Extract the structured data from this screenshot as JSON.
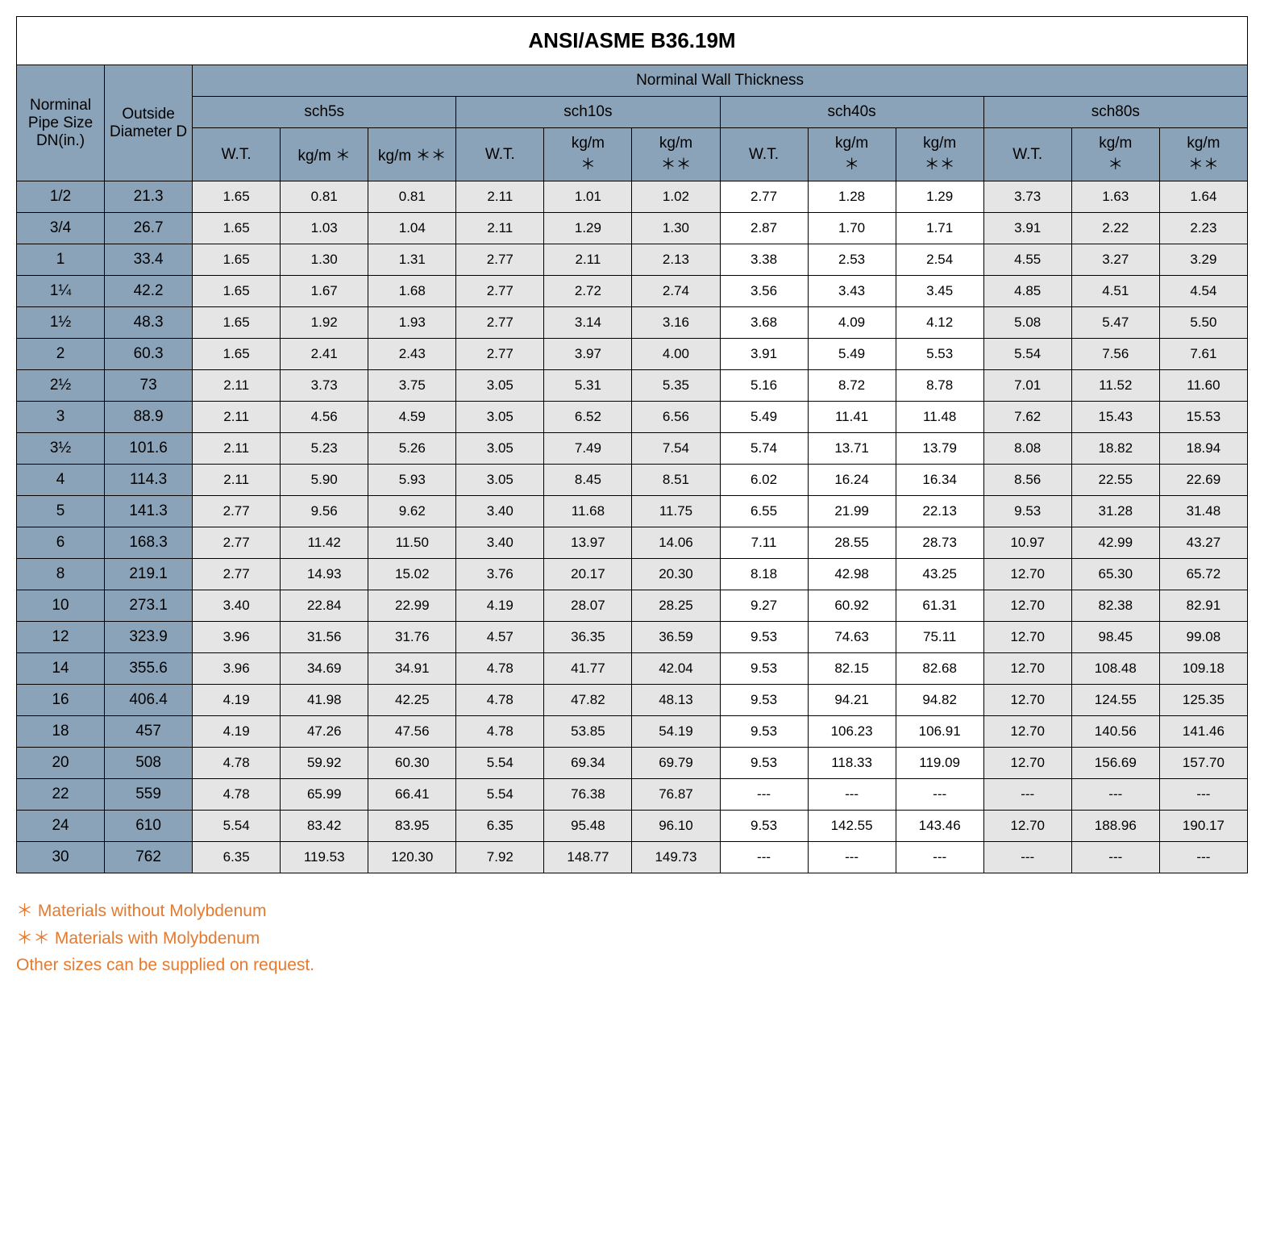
{
  "title": "ANSI/ASME B36.19M",
  "headers": {
    "nominal_pipe": "Norminal Pipe Size DN(in.)",
    "outside_diameter": "Outside Diameter D",
    "nominal_wall": "Norminal Wall Thickness",
    "schedules": [
      "sch5s",
      "sch10s",
      "sch40s",
      "sch80s"
    ],
    "sub": {
      "wt": "W.T.",
      "kgm1": "kg/m ＊",
      "kgm2": "kg/m ＊＊",
      "kgm1_stack": "kg/m\n＊",
      "kgm2_stack": "kg/m\n＊＊"
    }
  },
  "rows": [
    {
      "dn": "1/2",
      "od": "21.3",
      "s5": [
        "1.65",
        "0.81",
        "0.81"
      ],
      "s10": [
        "2.11",
        "1.01",
        "1.02"
      ],
      "s40": [
        "2.77",
        "1.28",
        "1.29"
      ],
      "s80": [
        "3.73",
        "1.63",
        "1.64"
      ]
    },
    {
      "dn": "3/4",
      "od": "26.7",
      "s5": [
        "1.65",
        "1.03",
        "1.04"
      ],
      "s10": [
        "2.11",
        "1.29",
        "1.30"
      ],
      "s40": [
        "2.87",
        "1.70",
        "1.71"
      ],
      "s80": [
        "3.91",
        "2.22",
        "2.23"
      ]
    },
    {
      "dn": "1",
      "od": "33.4",
      "s5": [
        "1.65",
        "1.30",
        "1.31"
      ],
      "s10": [
        "2.77",
        "2.11",
        "2.13"
      ],
      "s40": [
        "3.38",
        "2.53",
        "2.54"
      ],
      "s80": [
        "4.55",
        "3.27",
        "3.29"
      ]
    },
    {
      "dn": "1¼",
      "od": "42.2",
      "s5": [
        "1.65",
        "1.67",
        "1.68"
      ],
      "s10": [
        "2.77",
        "2.72",
        "2.74"
      ],
      "s40": [
        "3.56",
        "3.43",
        "3.45"
      ],
      "s80": [
        "4.85",
        "4.51",
        "4.54"
      ]
    },
    {
      "dn": "1½",
      "od": "48.3",
      "s5": [
        "1.65",
        "1.92",
        "1.93"
      ],
      "s10": [
        "2.77",
        "3.14",
        "3.16"
      ],
      "s40": [
        "3.68",
        "4.09",
        "4.12"
      ],
      "s80": [
        "5.08",
        "5.47",
        "5.50"
      ]
    },
    {
      "dn": "2",
      "od": "60.3",
      "s5": [
        "1.65",
        "2.41",
        "2.43"
      ],
      "s10": [
        "2.77",
        "3.97",
        "4.00"
      ],
      "s40": [
        "3.91",
        "5.49",
        "5.53"
      ],
      "s80": [
        "5.54",
        "7.56",
        "7.61"
      ]
    },
    {
      "dn": "2½",
      "od": "73",
      "s5": [
        "2.11",
        "3.73",
        "3.75"
      ],
      "s10": [
        "3.05",
        "5.31",
        "5.35"
      ],
      "s40": [
        "5.16",
        "8.72",
        "8.78"
      ],
      "s80": [
        "7.01",
        "11.52",
        "11.60"
      ]
    },
    {
      "dn": "3",
      "od": "88.9",
      "s5": [
        "2.11",
        "4.56",
        "4.59"
      ],
      "s10": [
        "3.05",
        "6.52",
        "6.56"
      ],
      "s40": [
        "5.49",
        "11.41",
        "11.48"
      ],
      "s80": [
        "7.62",
        "15.43",
        "15.53"
      ]
    },
    {
      "dn": "3½",
      "od": "101.6",
      "s5": [
        "2.11",
        "5.23",
        "5.26"
      ],
      "s10": [
        "3.05",
        "7.49",
        "7.54"
      ],
      "s40": [
        "5.74",
        "13.71",
        "13.79"
      ],
      "s80": [
        "8.08",
        "18.82",
        "18.94"
      ]
    },
    {
      "dn": "4",
      "od": "114.3",
      "s5": [
        "2.11",
        "5.90",
        "5.93"
      ],
      "s10": [
        "3.05",
        "8.45",
        "8.51"
      ],
      "s40": [
        "6.02",
        "16.24",
        "16.34"
      ],
      "s80": [
        "8.56",
        "22.55",
        "22.69"
      ]
    },
    {
      "dn": "5",
      "od": "141.3",
      "s5": [
        "2.77",
        "9.56",
        "9.62"
      ],
      "s10": [
        "3.40",
        "11.68",
        "11.75"
      ],
      "s40": [
        "6.55",
        "21.99",
        "22.13"
      ],
      "s80": [
        "9.53",
        "31.28",
        "31.48"
      ]
    },
    {
      "dn": "6",
      "od": "168.3",
      "s5": [
        "2.77",
        "11.42",
        "11.50"
      ],
      "s10": [
        "3.40",
        "13.97",
        "14.06"
      ],
      "s40": [
        "7.11",
        "28.55",
        "28.73"
      ],
      "s80": [
        "10.97",
        "42.99",
        "43.27"
      ]
    },
    {
      "dn": "8",
      "od": "219.1",
      "s5": [
        "2.77",
        "14.93",
        "15.02"
      ],
      "s10": [
        "3.76",
        "20.17",
        "20.30"
      ],
      "s40": [
        "8.18",
        "42.98",
        "43.25"
      ],
      "s80": [
        "12.70",
        "65.30",
        "65.72"
      ]
    },
    {
      "dn": "10",
      "od": "273.1",
      "s5": [
        "3.40",
        "22.84",
        "22.99"
      ],
      "s10": [
        "4.19",
        "28.07",
        "28.25"
      ],
      "s40": [
        "9.27",
        "60.92",
        "61.31"
      ],
      "s80": [
        "12.70",
        "82.38",
        "82.91"
      ]
    },
    {
      "dn": "12",
      "od": "323.9",
      "s5": [
        "3.96",
        "31.56",
        "31.76"
      ],
      "s10": [
        "4.57",
        "36.35",
        "36.59"
      ],
      "s40": [
        "9.53",
        "74.63",
        "75.11"
      ],
      "s80": [
        "12.70",
        "98.45",
        "99.08"
      ]
    },
    {
      "dn": "14",
      "od": "355.6",
      "s5": [
        "3.96",
        "34.69",
        "34.91"
      ],
      "s10": [
        "4.78",
        "41.77",
        "42.04"
      ],
      "s40": [
        "9.53",
        "82.15",
        "82.68"
      ],
      "s80": [
        "12.70",
        "108.48",
        "109.18"
      ]
    },
    {
      "dn": "16",
      "od": "406.4",
      "s5": [
        "4.19",
        "41.98",
        "42.25"
      ],
      "s10": [
        "4.78",
        "47.82",
        "48.13"
      ],
      "s40": [
        "9.53",
        "94.21",
        "94.82"
      ],
      "s80": [
        "12.70",
        "124.55",
        "125.35"
      ]
    },
    {
      "dn": "18",
      "od": "457",
      "s5": [
        "4.19",
        "47.26",
        "47.56"
      ],
      "s10": [
        "4.78",
        "53.85",
        "54.19"
      ],
      "s40": [
        "9.53",
        "106.23",
        "106.91"
      ],
      "s80": [
        "12.70",
        "140.56",
        "141.46"
      ]
    },
    {
      "dn": "20",
      "od": "508",
      "s5": [
        "4.78",
        "59.92",
        "60.30"
      ],
      "s10": [
        "5.54",
        "69.34",
        "69.79"
      ],
      "s40": [
        "9.53",
        "118.33",
        "119.09"
      ],
      "s80": [
        "12.70",
        "156.69",
        "157.70"
      ]
    },
    {
      "dn": "22",
      "od": "559",
      "s5": [
        "4.78",
        "65.99",
        "66.41"
      ],
      "s10": [
        "5.54",
        "76.38",
        "76.87"
      ],
      "s40": [
        "---",
        "---",
        "---"
      ],
      "s80": [
        "---",
        "---",
        "---"
      ]
    },
    {
      "dn": "24",
      "od": "610",
      "s5": [
        "5.54",
        "83.42",
        "83.95"
      ],
      "s10": [
        "6.35",
        "95.48",
        "96.10"
      ],
      "s40": [
        "9.53",
        "142.55",
        "143.46"
      ],
      "s80": [
        "12.70",
        "188.96",
        "190.17"
      ]
    },
    {
      "dn": "30",
      "od": "762",
      "s5": [
        "6.35",
        "119.53",
        "120.30"
      ],
      "s10": [
        "7.92",
        "148.77",
        "149.73"
      ],
      "s40": [
        "---",
        "---",
        "---"
      ],
      "s80": [
        "---",
        "---",
        "---"
      ]
    }
  ],
  "footnotes": {
    "line1": "＊  Materials without Molybdenum",
    "line2": "＊＊  Materials with Molybdenum",
    "line3": "Other sizes can be supplied on request."
  },
  "styling": {
    "header_bg": "#8ba3b8",
    "gray_bg": "#e5e5e5",
    "white_bg": "#ffffff",
    "border_color": "#000000",
    "footnote_color": "#e57a2e",
    "title_fontsize": 26,
    "header_fontsize": 19,
    "cell_fontsize": 17,
    "footnote_fontsize": 21
  }
}
